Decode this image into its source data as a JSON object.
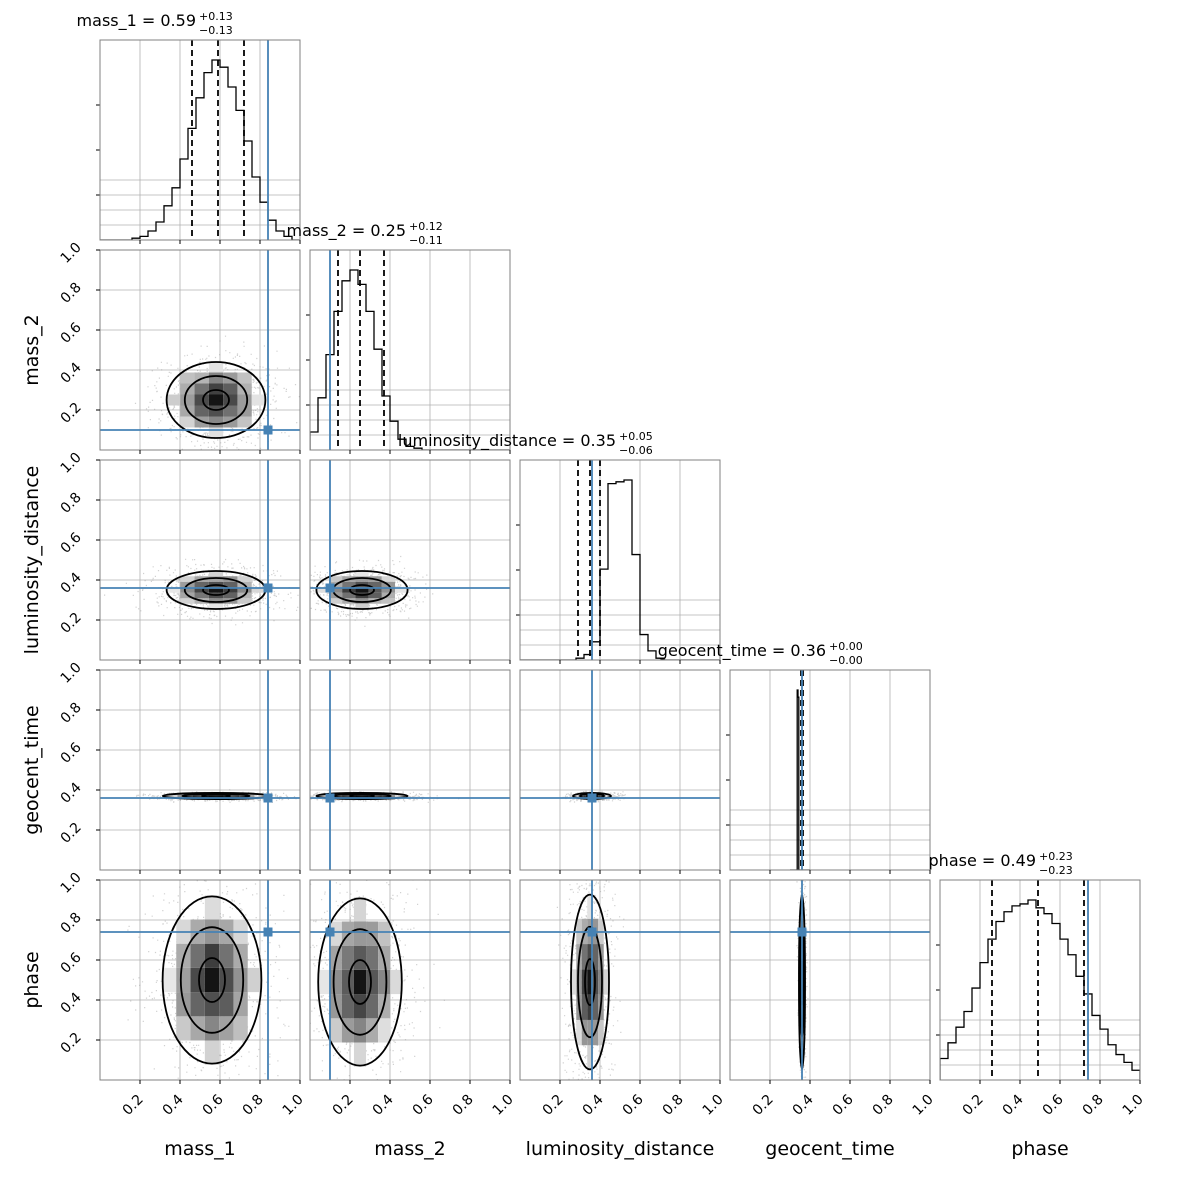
{
  "chart_data": {
    "type": "corner",
    "parameters": [
      "mass_1",
      "mass_2",
      "luminosity_distance",
      "geocent_time",
      "phase"
    ],
    "axis_range": [
      0,
      1
    ],
    "tick_labels": [
      "0.2",
      "0.4",
      "0.6",
      "0.8",
      "1.0"
    ],
    "grid": true,
    "truth_color": "#4682b4",
    "line_color": "#000000",
    "truths": {
      "mass_1": 0.84,
      "mass_2": 0.1,
      "luminosity_distance": 0.36,
      "geocent_time": 0.36,
      "phase": 0.74
    },
    "marginals": [
      {
        "parameter": "mass_1",
        "title_main": "mass_1 = 0.59",
        "err_plus": "+0.13",
        "err_minus": "−0.13",
        "median": 0.59,
        "lower": 0.46,
        "upper": 0.72,
        "hist": [
          0.0,
          0.0,
          0.0,
          0.0,
          0.01,
          0.02,
          0.05,
          0.1,
          0.19,
          0.29,
          0.45,
          0.62,
          0.79,
          0.93,
          1.0,
          0.96,
          0.85,
          0.72,
          0.55,
          0.35,
          0.21,
          0.11,
          0.05,
          0.02,
          0.0
        ]
      },
      {
        "parameter": "mass_2",
        "title_main": "mass_2 = 0.25",
        "err_plus": "+0.12",
        "err_minus": "−0.11",
        "median": 0.25,
        "lower": 0.14,
        "upper": 0.37,
        "hist": [
          0.1,
          0.29,
          0.53,
          0.77,
          0.94,
          1.0,
          0.92,
          0.77,
          0.56,
          0.3,
          0.16,
          0.06,
          0.02,
          0.01,
          0.0,
          0.0,
          0.0,
          0.0,
          0.0,
          0.0,
          0.0,
          0.0,
          0.0,
          0.0,
          0.0
        ]
      },
      {
        "parameter": "luminosity_distance",
        "title_main": "luminosity_distance = 0.35",
        "err_plus": "+0.05",
        "err_minus": "−0.06",
        "median": 0.35,
        "lower": 0.29,
        "upper": 0.4,
        "hist": [
          0.0,
          0.0,
          0.0,
          0.0,
          0.0,
          0.0,
          0.0,
          0.01,
          0.03,
          0.1,
          0.5,
          0.97,
          0.98,
          0.99,
          0.58,
          0.14,
          0.05,
          0.01,
          0.0,
          0.0,
          0.0,
          0.0,
          0.0,
          0.0,
          0.0
        ]
      },
      {
        "parameter": "geocent_time",
        "title_main": "geocent_time = 0.36",
        "err_plus": "+0.00",
        "err_minus": "−0.00",
        "median": 0.36,
        "lower": 0.355,
        "upper": 0.365,
        "hist": [
          0.0,
          0.0,
          0.0,
          0.0,
          0.0,
          0.0,
          0.0,
          0.0,
          0.0,
          1.0,
          0.96,
          0.0,
          0.0,
          0.0,
          0.0,
          0.0,
          0.0,
          0.0,
          0.0,
          0.0,
          0.0,
          0.0,
          0.0,
          0.0,
          0.0
        ],
        "hist_range": [
          0.3,
          0.4
        ]
      },
      {
        "parameter": "phase",
        "title_main": "phase = 0.49",
        "err_plus": "+0.23",
        "err_minus": "−0.23",
        "median": 0.49,
        "lower": 0.26,
        "upper": 0.72,
        "hist": [
          0.11,
          0.19,
          0.27,
          0.35,
          0.47,
          0.6,
          0.72,
          0.81,
          0.86,
          0.89,
          0.9,
          0.92,
          0.88,
          0.85,
          0.8,
          0.72,
          0.64,
          0.53,
          0.44,
          0.33,
          0.26,
          0.18,
          0.13,
          0.09,
          0.05
        ]
      }
    ],
    "joint": [
      {
        "x": "mass_1",
        "y": "mass_2",
        "cx": 0.58,
        "cy": 0.25,
        "sx": 0.13,
        "sy": 0.1
      },
      {
        "x": "mass_1",
        "y": "luminosity_distance",
        "cx": 0.58,
        "cy": 0.35,
        "sx": 0.13,
        "sy": 0.05
      },
      {
        "x": "mass_2",
        "y": "luminosity_distance",
        "cx": 0.26,
        "cy": 0.35,
        "sx": 0.12,
        "sy": 0.05
      },
      {
        "x": "mass_1",
        "y": "geocent_time",
        "cx": 0.58,
        "cy": 0.37,
        "sx": 0.14,
        "sy": 0.008
      },
      {
        "x": "mass_2",
        "y": "geocent_time",
        "cx": 0.26,
        "cy": 0.37,
        "sx": 0.12,
        "sy": 0.008
      },
      {
        "x": "luminosity_distance",
        "y": "geocent_time",
        "cx": 0.36,
        "cy": 0.37,
        "sx": 0.05,
        "sy": 0.008
      },
      {
        "x": "mass_1",
        "y": "phase",
        "cx": 0.56,
        "cy": 0.5,
        "sx": 0.13,
        "sy": 0.22
      },
      {
        "x": "mass_2",
        "y": "phase",
        "cx": 0.25,
        "cy": 0.49,
        "sx": 0.11,
        "sy": 0.22
      },
      {
        "x": "luminosity_distance",
        "y": "phase",
        "cx": 0.35,
        "cy": 0.49,
        "sx": 0.05,
        "sy": 0.23
      },
      {
        "x": "geocent_time",
        "y": "phase",
        "cx": 0.36,
        "cy": 0.49,
        "sx": 0.008,
        "sy": 0.23
      }
    ]
  }
}
